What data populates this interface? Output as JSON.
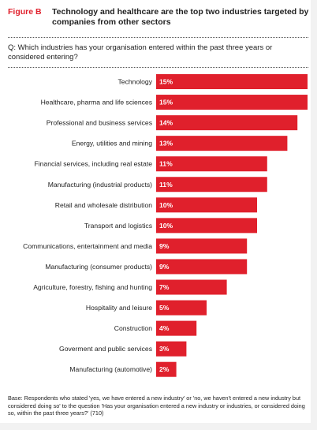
{
  "figure": {
    "label": "Figure B",
    "title": "Technology and healthcare are the top two industries targeted by companies from other sectors"
  },
  "question": "Q: Which industries has your organisation entered within the past three years or considered entering?",
  "footnote": "Base: Respondents who stated 'yes, we have entered a new industry' or 'no, we haven't entered a new industry but considered doing so' to the question 'Has your organisation entered a new industry or industries, or considered doing so, within the past three years?' (710)",
  "colors": {
    "bar": "#e0202c",
    "label_text": "#ffffff",
    "accent": "#e0202c"
  },
  "chart_data": {
    "type": "bar",
    "orientation": "horizontal",
    "categories": [
      "Technology",
      "Healthcare, pharma and life sciences",
      "Professional and business services",
      "Energy, utilities and mining",
      "Financial services, including real estate",
      "Manufacturing (industrial products)",
      "Retail and wholesale distribution",
      "Transport and logistics",
      "Communications, entertainment and media",
      "Manufacturing (consumer products)",
      "Agriculture, forestry, fishing and hunting",
      "Hospitality and leisure",
      "Construction",
      "Goverment and public services",
      "Manufacturing (automotive)"
    ],
    "values": [
      15,
      15,
      14,
      13,
      11,
      11,
      10,
      10,
      9,
      9,
      7,
      5,
      4,
      3,
      2
    ],
    "value_labels": [
      "15%",
      "15%",
      "14%",
      "13%",
      "11%",
      "11%",
      "10%",
      "10%",
      "9%",
      "9%",
      "7%",
      "5%",
      "4%",
      "3%",
      "2%"
    ],
    "xlim": [
      0,
      15
    ],
    "grid": false,
    "legend": "none"
  }
}
